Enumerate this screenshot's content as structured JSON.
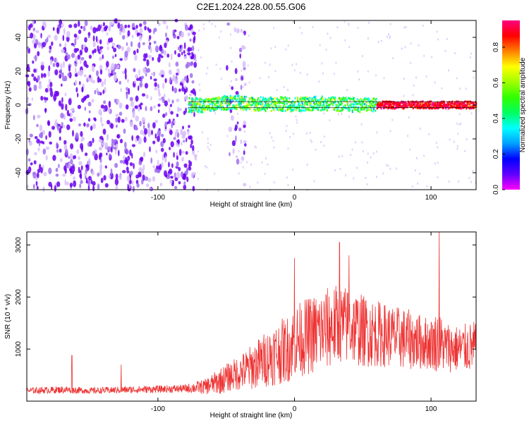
{
  "title": "C2E1.2024.228.00.55.G06",
  "chart_data": [
    {
      "type": "heatmap",
      "xlabel": "Height of straight line (km)",
      "ylabel": "Frequency (Hz)",
      "xlim": [
        -196,
        133
      ],
      "ylim": [
        -50,
        50
      ],
      "x_ticks": [
        -100,
        0,
        100
      ],
      "y_ticks": [
        -40,
        -20,
        0,
        20,
        40
      ],
      "colorbar": {
        "label": "Normalized spectral amplitude",
        "range": [
          0,
          0.95
        ],
        "ticks": [
          "0.0",
          "0.2",
          "0.4",
          "0.6",
          "0.8"
        ],
        "colormap": [
          "#ff00ff",
          "#6000ff",
          "#0000ff",
          "#00a0ff",
          "#00ffff",
          "#00ff60",
          "#30ff00",
          "#a0ff00",
          "#ffff00",
          "#ff8000",
          "#ff0000",
          "#ff0080"
        ]
      },
      "signal_track": {
        "description_free": true,
        "x": [
          -78,
          -60,
          -45,
          -30,
          -15,
          0,
          15,
          30,
          45,
          60,
          80,
          100,
          120,
          133
        ],
        "y": [
          0,
          0,
          2,
          0.5,
          0.5,
          0.5,
          1,
          0.5,
          0,
          0,
          0,
          0,
          0,
          0
        ]
      },
      "noise_regions": [
        {
          "x_range": [
            -196,
            -72
          ],
          "density": 0.55
        },
        {
          "x_range": [
            -50,
            -36
          ],
          "density": 0.25
        }
      ]
    },
    {
      "type": "line",
      "xlabel": "Height of straight line (km)",
      "ylabel": "SNR (10 * v/v)",
      "xlim": [
        -196,
        133
      ],
      "ylim": [
        0,
        3250
      ],
      "x_ticks": [
        -100,
        0,
        100
      ],
      "y_ticks": [
        1000,
        2000,
        3000
      ],
      "color": "#ee3333",
      "envelope": {
        "x": [
          -196,
          -170,
          -150,
          -120,
          -100,
          -80,
          -65,
          -55,
          -45,
          -35,
          -25,
          -15,
          -5,
          0,
          10,
          20,
          30,
          40,
          50,
          60,
          70,
          80,
          90,
          100,
          105,
          110,
          120,
          133
        ],
        "base": [
          200,
          220,
          200,
          220,
          230,
          240,
          280,
          380,
          500,
          600,
          750,
          900,
          1000,
          1150,
          1250,
          1350,
          1450,
          1450,
          1350,
          1300,
          1250,
          1200,
          1150,
          1100,
          1150,
          1050,
          1000,
          1050
        ],
        "spread": [
          60,
          70,
          60,
          70,
          70,
          80,
          150,
          250,
          300,
          400,
          500,
          600,
          650,
          700,
          750,
          800,
          800,
          750,
          700,
          650,
          600,
          600,
          550,
          500,
          600,
          500,
          450,
          500
        ]
      },
      "peaks": [
        {
          "x": -163,
          "y": 880
        },
        {
          "x": -127,
          "y": 700
        },
        {
          "x": 0,
          "y": 2750
        },
        {
          "x": 33,
          "y": 3050
        },
        {
          "x": 40,
          "y": 2800
        },
        {
          "x": 106,
          "y": 3250
        }
      ]
    }
  ]
}
